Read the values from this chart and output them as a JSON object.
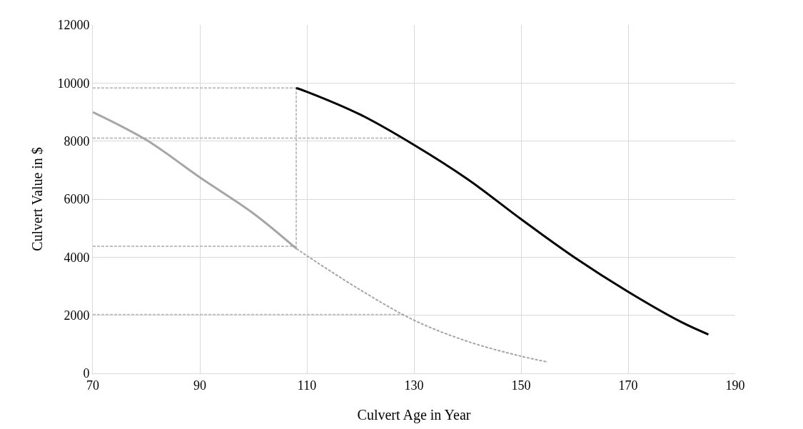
{
  "chart_data": {
    "type": "line",
    "xlabel": "Culvert Age in Year",
    "ylabel": "Culvert Value in $",
    "xlim": [
      70,
      190
    ],
    "xticks": [
      70,
      90,
      110,
      130,
      150,
      170,
      190
    ],
    "ylim": [
      0,
      12000
    ],
    "yticks": [
      0,
      2000,
      4000,
      6000,
      8000,
      10000,
      12000
    ],
    "grid": true,
    "marker": "none",
    "series": [
      {
        "color": "#bfbfbf",
        "line_style": "dashed",
        "x": [
          70,
          108
        ],
        "values": [
          9830,
          9830
        ]
      },
      {
        "color": "#bfbfbf",
        "line_style": "dashed",
        "x": [
          70,
          128
        ],
        "values": [
          8100,
          8100
        ]
      },
      {
        "color": "#bfbfbf",
        "line_style": "dashed",
        "x": [
          70,
          108
        ],
        "values": [
          4380,
          4380
        ]
      },
      {
        "color": "#bfbfbf",
        "line_style": "dashed",
        "x": [
          70,
          128
        ],
        "values": [
          2020,
          2020
        ]
      },
      {
        "color": "#bfbfbf",
        "line_style": "dashed",
        "x": [
          108,
          108
        ],
        "values": [
          4300,
          9830
        ]
      },
      {
        "color": "#a6a6a6",
        "line_style": "solid",
        "x": [
          70,
          80,
          90,
          100,
          108
        ],
        "values": [
          9000,
          8040,
          6750,
          5510,
          4300
        ]
      },
      {
        "color": "#a6a6a6",
        "line_style": "dashed",
        "x": [
          108,
          110,
          120,
          130,
          140,
          150,
          155
        ],
        "values": [
          4300,
          4050,
          2870,
          1830,
          1100,
          590,
          390
        ]
      },
      {
        "color": "#000000",
        "line_style": "solid",
        "x": [
          108,
          110,
          120,
          130,
          140,
          150,
          160,
          170,
          180,
          185
        ],
        "values": [
          9830,
          9700,
          8910,
          7870,
          6690,
          5310,
          3990,
          2810,
          1760,
          1340
        ]
      }
    ]
  }
}
